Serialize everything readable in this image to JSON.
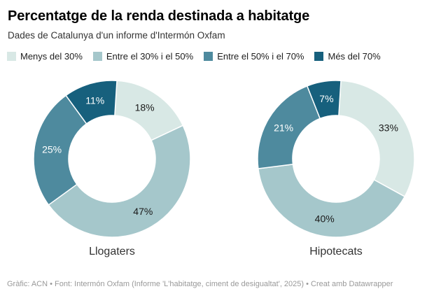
{
  "header": {
    "title": "Percentatge de la renda destinada a habitatge",
    "subtitle": "Dades de Catalunya d'un informe d'Intermón Oxfam"
  },
  "legend": {
    "items": [
      {
        "label": "Menys del 30%",
        "color": "#d8e8e5"
      },
      {
        "label": "Entre el 30% i el 50%",
        "color": "#a5c7cb"
      },
      {
        "label": "Entre el 50% i el 70%",
        "color": "#4e8a9e"
      },
      {
        "label": "Més del 70%",
        "color": "#17607d"
      }
    ]
  },
  "chart_data": {
    "type": "pie",
    "subtype": "donut-multiples",
    "title": "Percentatge de la renda destinada a habitatge",
    "subtitle": "Dades de Catalunya d'un informe d'Intermón Oxfam",
    "categories": [
      "Menys del 30%",
      "Entre el 30% i el 50%",
      "Entre el 50% i el 70%",
      "Més del 70%"
    ],
    "series": [
      {
        "name": "Llogaters",
        "values": [
          18,
          47,
          25,
          11
        ]
      },
      {
        "name": "Hipotecats",
        "values": [
          33,
          40,
          21,
          7
        ]
      }
    ],
    "colors": [
      "#d8e8e5",
      "#a5c7cb",
      "#4e8a9e",
      "#17607d"
    ],
    "label_colors": [
      "#1a1a1a",
      "#1a1a1a",
      "#ffffff",
      "#ffffff"
    ],
    "value_suffix": "%",
    "legend_position": "top",
    "start_angle_deg": 0,
    "direction": "clockwise"
  },
  "footer": {
    "text": "Gràfic: ACN • Font: Intermón Oxfam (Informe 'L'habitatge, ciment de desigualtat', 2025) • Creat amb Datawrapper"
  }
}
